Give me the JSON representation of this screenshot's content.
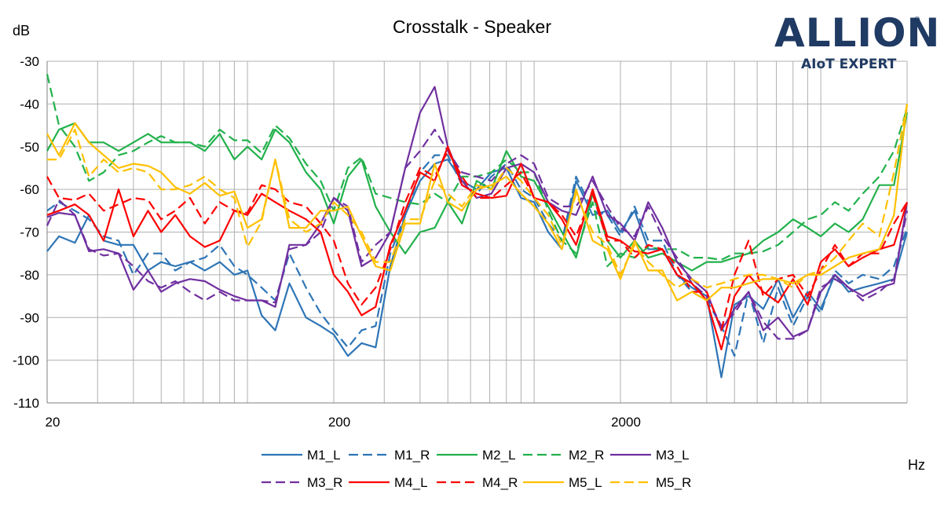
{
  "chart_data": {
    "type": "line",
    "title": "Crosstalk - Speaker",
    "ylabel": "dB",
    "xlabel": "Hz",
    "x_scale": "log",
    "xlim": [
      20,
      20000
    ],
    "ylim": [
      -110,
      -30
    ],
    "y_ticks": [
      -30,
      -40,
      -50,
      -60,
      -70,
      -80,
      -90,
      -100,
      -110
    ],
    "x_tick_labels": [
      {
        "x": 20,
        "label": "20"
      },
      {
        "x": 200,
        "label": "200"
      },
      {
        "x": 2000,
        "label": "2000"
      }
    ],
    "grid": true,
    "legend_position": "bottom",
    "x": [
      20,
      22,
      25,
      28,
      31.5,
      35.5,
      40,
      45,
      50,
      56,
      63,
      71,
      80,
      90,
      100,
      112,
      125,
      140,
      160,
      180,
      200,
      224,
      250,
      280,
      315,
      355,
      400,
      450,
      500,
      560,
      630,
      710,
      800,
      900,
      1000,
      1120,
      1250,
      1400,
      1600,
      1800,
      2000,
      2240,
      2500,
      2800,
      3150,
      3550,
      4000,
      4500,
      5000,
      5600,
      6300,
      7100,
      8000,
      9000,
      10000,
      11200,
      12500,
      14000,
      16000,
      18000,
      20000
    ],
    "series": [
      {
        "name": "M1_L",
        "color": "#2e75b6",
        "dashed": false,
        "values": [
          -74.5,
          -71,
          -72.5,
          -66,
          -72,
          -73,
          -73,
          -79,
          -77,
          -78,
          -77,
          -79,
          -77,
          -80,
          -79,
          -89.5,
          -93,
          -82,
          -90,
          -92,
          -94,
          -99,
          -96,
          -97,
          -78,
          -66,
          -58,
          -54,
          -53,
          -58,
          -60,
          -56,
          -55,
          -62,
          -63,
          -70,
          -74,
          -58,
          -66,
          -65,
          -70,
          -65,
          -74,
          -74,
          -80,
          -83,
          -85,
          -104,
          -87,
          -85,
          -88,
          -81,
          -90,
          -84,
          -88,
          -80,
          -84,
          -83,
          -82,
          -81,
          -70
        ]
      },
      {
        "name": "M1_R",
        "color": "#2e75b6",
        "dashed": true,
        "values": [
          -65,
          -63,
          -65,
          -67,
          -71,
          -72,
          -80,
          -75,
          -75,
          -79,
          -77,
          -76,
          -73,
          -78,
          -80,
          -83,
          -86,
          -75,
          -83,
          -89,
          -93,
          -97,
          -93,
          -92,
          -75,
          -66,
          -56,
          -52,
          -52,
          -59,
          -61,
          -57,
          -54,
          -60,
          -62,
          -68,
          -72,
          -57,
          -65,
          -66,
          -71,
          -64,
          -72,
          -72,
          -80,
          -84,
          -86,
          -92,
          -99,
          -84,
          -96,
          -83,
          -92,
          -85,
          -89,
          -79,
          -82,
          -80,
          -81,
          -78,
          -69
        ]
      },
      {
        "name": "M2_L",
        "color": "#22b14c",
        "dashed": false,
        "values": [
          -51,
          -46,
          -44.5,
          -49,
          -49,
          -51,
          -49,
          -47,
          -49,
          -49,
          -49,
          -51,
          -47,
          -53,
          -50,
          -53,
          -46,
          -49,
          -56,
          -60,
          -68,
          -57,
          -53,
          -64,
          -70,
          -75,
          -70,
          -69,
          -63,
          -68,
          -58,
          -60,
          -51,
          -57,
          -58,
          -64,
          -70,
          -76,
          -61,
          -72,
          -76,
          -72,
          -76,
          -75,
          -77,
          -79,
          -77,
          -77,
          -76,
          -75,
          -72,
          -70,
          -67,
          -69,
          -71,
          -68,
          -70,
          -67,
          -59,
          -59,
          -42
        ]
      },
      {
        "name": "M2_R",
        "color": "#22b14c",
        "dashed": true,
        "values": [
          -33,
          -45,
          -50,
          -58,
          -56,
          -52,
          -51,
          -49,
          -47.5,
          -49,
          -49,
          -50,
          -46,
          -48.5,
          -48.5,
          -51.5,
          -45,
          -48,
          -54,
          -58,
          -65,
          -55,
          -52.5,
          -61,
          -62,
          -63,
          -63.5,
          -61,
          -63,
          -57,
          -57,
          -56,
          -53,
          -56,
          -56,
          -65,
          -72,
          -75,
          -63,
          -78,
          -75,
          -76,
          -73.5,
          -74,
          -74,
          -76,
          -76,
          -76.5,
          -75,
          -75,
          -74.5,
          -73,
          -70,
          -67,
          -66,
          -63,
          -65,
          -61,
          -57,
          -51,
          -41
        ]
      },
      {
        "name": "M3_L",
        "color": "#7030a0",
        "dashed": false,
        "values": [
          -66.5,
          -65.5,
          -66,
          -74.5,
          -74,
          -75,
          -83.5,
          -79,
          -84,
          -82,
          -81,
          -81.5,
          -83.5,
          -85,
          -86,
          -86,
          -87.5,
          -73,
          -73,
          -68,
          -62,
          -65,
          -78,
          -76,
          -70,
          -55,
          -42,
          -36,
          -50,
          -58,
          -62,
          -61,
          -55,
          -54,
          -56,
          -63,
          -65,
          -66,
          -57,
          -66,
          -68,
          -72,
          -63,
          -69,
          -77,
          -81,
          -84,
          -93,
          -88,
          -84,
          -93,
          -90,
          -94.5,
          -93,
          -84,
          -80,
          -83,
          -85,
          -83,
          -82,
          -63
        ]
      },
      {
        "name": "M3_R",
        "color": "#7030a0",
        "dashed": true,
        "values": [
          -68.5,
          -62.5,
          -66,
          -74,
          -75.5,
          -75,
          -78,
          -81.5,
          -83,
          -81.5,
          -84,
          -86,
          -84,
          -86,
          -86,
          -86,
          -86.5,
          -74,
          -73,
          -70,
          -62,
          -64,
          -77,
          -73,
          -70,
          -55,
          -51,
          -46,
          -51,
          -56,
          -57,
          -58,
          -54,
          -52,
          -54,
          -62,
          -64,
          -64,
          -58,
          -64,
          -69,
          -71,
          -64,
          -71,
          -76,
          -82,
          -85,
          -92,
          -89,
          -84,
          -91,
          -95,
          -95,
          -93,
          -83,
          -81,
          -83,
          -86,
          -84,
          -81,
          -65
        ]
      },
      {
        "name": "M4_L",
        "color": "#ff0000",
        "dashed": false,
        "values": [
          -66,
          -65,
          -63.5,
          -66,
          -72,
          -60,
          -71,
          -65,
          -70,
          -66,
          -71,
          -73.5,
          -72,
          -65,
          -66,
          -61,
          -63,
          -65,
          -67,
          -70,
          -80,
          -84,
          -89.5,
          -87.5,
          -73,
          -65,
          -56,
          -58,
          -50,
          -59,
          -61,
          -62,
          -61.5,
          -54,
          -62,
          -63,
          -67,
          -73,
          -60,
          -71,
          -72,
          -74.5,
          -75,
          -74,
          -80,
          -82,
          -86,
          -97.5,
          -85,
          -80,
          -84,
          -86.5,
          -81,
          -87,
          -77,
          -74,
          -78,
          -76,
          -74,
          -73,
          -63
        ]
      },
      {
        "name": "M4_R",
        "color": "#ff0000",
        "dashed": true,
        "values": [
          -57,
          -62,
          -62.5,
          -61,
          -65,
          -63.5,
          -62,
          -62.5,
          -67,
          -65,
          -62,
          -68,
          -63,
          -65,
          -65.5,
          -59,
          -60,
          -63,
          -64,
          -68,
          -72,
          -82,
          -87,
          -83,
          -74,
          -63,
          -55,
          -57,
          -51,
          -57,
          -62,
          -62,
          -59,
          -56,
          -62,
          -63,
          -66,
          -71,
          -61,
          -72,
          -72,
          -76,
          -73,
          -74,
          -78,
          -84,
          -84,
          -93,
          -80,
          -72,
          -85,
          -81,
          -80,
          -85,
          -79,
          -73,
          -78,
          -75,
          -75,
          -68,
          -63
        ]
      },
      {
        "name": "M5_L",
        "color": "#ffc000",
        "dashed": false,
        "values": [
          -47,
          -52,
          -44.5,
          -49,
          -52,
          -55,
          -54,
          -54.5,
          -56,
          -59.5,
          -61,
          -58.5,
          -61.5,
          -60.5,
          -69,
          -67,
          -53,
          -69,
          -69,
          -65,
          -65,
          -64,
          -71,
          -78,
          -79,
          -68,
          -68,
          -54,
          -63,
          -65,
          -60,
          -59,
          -57,
          -61,
          -64,
          -68,
          -74,
          -60,
          -72,
          -74,
          -81,
          -72,
          -79,
          -79,
          -86,
          -84,
          -86,
          -83,
          -83,
          -82,
          -81,
          -81,
          -82,
          -80,
          -80,
          -78,
          -76,
          -75,
          -74,
          -66,
          -40
        ]
      },
      {
        "name": "M5_R",
        "color": "#ffc000",
        "dashed": true,
        "values": [
          -53,
          -53,
          -46,
          -57,
          -53,
          -56,
          -55,
          -56,
          -60,
          -60,
          -59,
          -57,
          -60,
          -62,
          -73.5,
          -67.5,
          -53,
          -67,
          -70,
          -68,
          -63,
          -66,
          -70,
          -77,
          -77,
          -67,
          -67,
          -58,
          -61,
          -64,
          -59,
          -60,
          -55,
          -58,
          -62,
          -66,
          -73,
          -61,
          -70,
          -73,
          -80,
          -73,
          -77,
          -80,
          -83,
          -81,
          -83,
          -82,
          -81,
          -80,
          -80,
          -81,
          -83,
          -80,
          -79,
          -76,
          -72,
          -68,
          -71,
          -56,
          -40
        ]
      }
    ]
  },
  "logo": {
    "main": "ALLION",
    "registered": "®",
    "sub": "AIoT EXPERT"
  }
}
